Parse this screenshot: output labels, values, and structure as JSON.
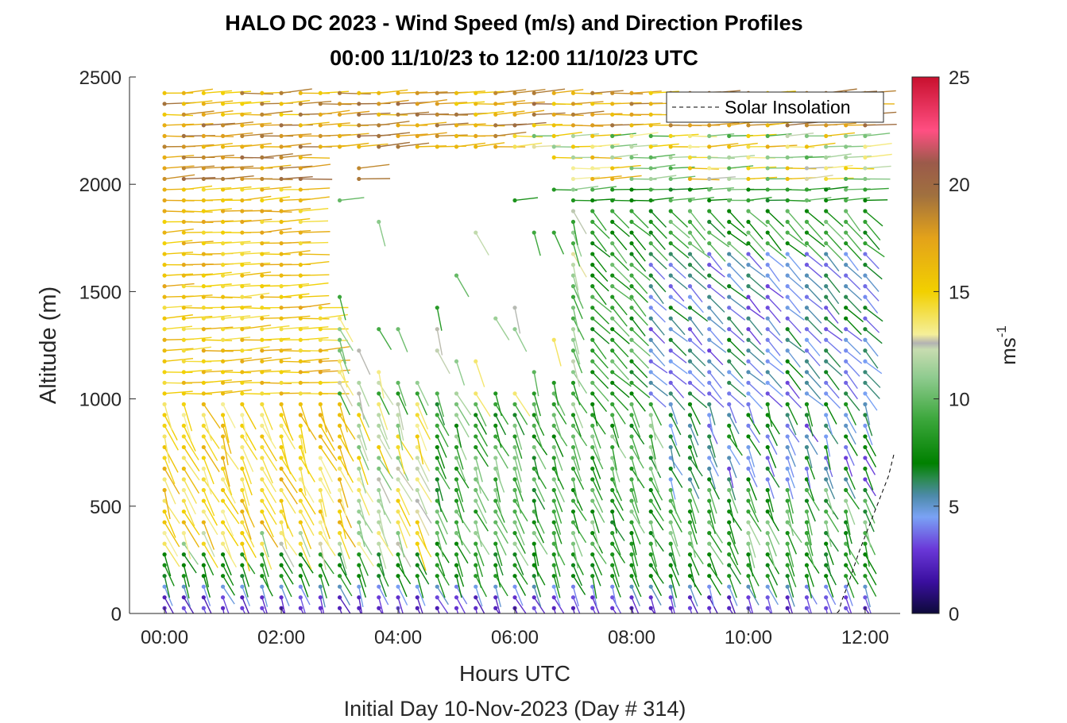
{
  "chart_data": {
    "type": "scatter",
    "subtype": "wind-barb-profile",
    "title_line1": "HALO DC 2023 - Wind Speed (m/s) and Direction Profiles",
    "title_line2": "00:00 11/10/23 to 12:00 11/10/23  UTC",
    "xlabel": "Hours UTC",
    "xlabel2": "Initial Day 10-Nov-2023 (Day # 314)",
    "ylabel": "Altitude (m)",
    "x_ticks": [
      "00:00",
      "02:00",
      "04:00",
      "06:00",
      "08:00",
      "10:00",
      "12:00"
    ],
    "x_tick_hours": [
      0,
      2,
      4,
      6,
      8,
      10,
      12
    ],
    "xlim_hours": [
      -0.6,
      12.6
    ],
    "y_ticks": [
      0,
      500,
      1000,
      1500,
      2000,
      2500
    ],
    "ylim": [
      0,
      2500
    ],
    "colorbar": {
      "label": "ms",
      "label_superscript": "-1",
      "ticks": [
        0,
        5,
        10,
        15,
        20,
        25
      ],
      "range": [
        0,
        25
      ],
      "stops": [
        {
          "v": 0,
          "c": "#0d0a3a"
        },
        {
          "v": 1.5,
          "c": "#3b0fa0"
        },
        {
          "v": 3,
          "c": "#6a38d8"
        },
        {
          "v": 4.5,
          "c": "#7aa2f5"
        },
        {
          "v": 5.5,
          "c": "#4c8aa8"
        },
        {
          "v": 6.3,
          "c": "#2a8a4c"
        },
        {
          "v": 7,
          "c": "#008000"
        },
        {
          "v": 9,
          "c": "#3aa63a"
        },
        {
          "v": 11,
          "c": "#8fcb8f"
        },
        {
          "v": 12.3,
          "c": "#c7dcb0"
        },
        {
          "v": 12.6,
          "c": "#b3b3b3"
        },
        {
          "v": 13,
          "c": "#f5ef9a"
        },
        {
          "v": 15,
          "c": "#f2d000"
        },
        {
          "v": 17.5,
          "c": "#e3a21a"
        },
        {
          "v": 19.5,
          "c": "#a0703f"
        },
        {
          "v": 21,
          "c": "#9b5a4a"
        },
        {
          "v": 22.5,
          "c": "#ff4f82"
        },
        {
          "v": 25,
          "c": "#c8102e"
        }
      ]
    },
    "legend": {
      "entries": [
        "Solar Insolation"
      ],
      "placement": "top-right",
      "line_style": "dashed"
    },
    "series": [
      {
        "name": "Solar Insolation",
        "x_hours": [
          -0.6,
          11.5,
          11.55,
          11.6,
          11.7,
          11.8,
          11.9,
          12.0,
          12.1,
          12.2,
          12.3,
          12.4,
          12.5
        ],
        "y": [
          0,
          0,
          10,
          60,
          130,
          210,
          290,
          360,
          430,
          500,
          570,
          640,
          750
        ]
      }
    ],
    "barbs": {
      "profile_times_hours": [
        0,
        0.33,
        0.67,
        1,
        1.33,
        1.67,
        2,
        2.33,
        2.67,
        3,
        3.33,
        3.67,
        4,
        4.33,
        4.67,
        5,
        5.33,
        5.67,
        6,
        6.33,
        6.67,
        7,
        7.33,
        7.67,
        8,
        8.33,
        8.67,
        9,
        9.33,
        9.67,
        10,
        10.33,
        10.67,
        11,
        11.33,
        11.67,
        12
      ],
      "altitude_step_m": 50,
      "max_altitude_m": 2450,
      "wind_speed_ms_by_layer": [
        {
          "alt_range": [
            0,
            100
          ],
          "speed": 2.5
        },
        {
          "alt_range": [
            100,
            250
          ],
          "speed": 7
        },
        {
          "alt_range": [
            250,
            1000
          ],
          "speed": "8-14 (12-14 before 04:30, 7-11 after)"
        },
        {
          "alt_range": [
            1000,
            2000
          ],
          "speed": "14-17 before 03:00, 3-9 after 07:00"
        },
        {
          "alt_range": [
            2000,
            2450
          ],
          "speed": "16-20 upper band"
        }
      ],
      "gap_region": "no data roughly 03:00-07:00 between 1000 m and 2150 m"
    }
  }
}
